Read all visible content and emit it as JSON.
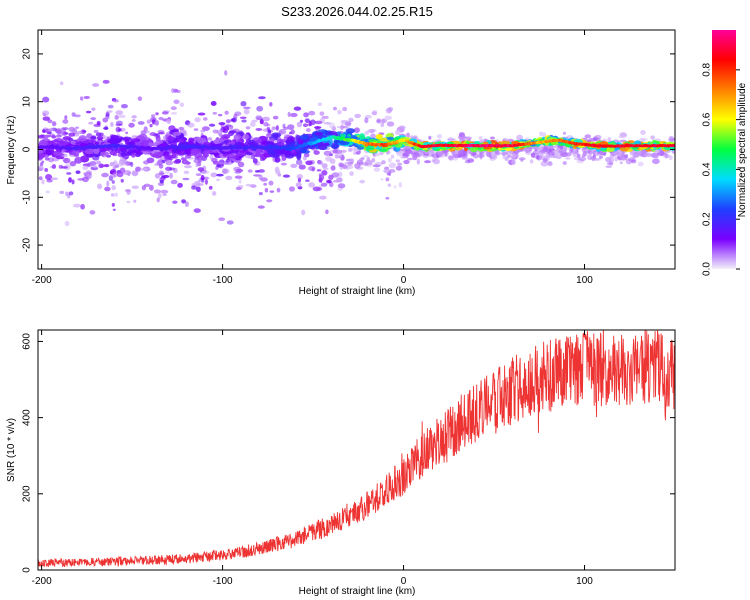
{
  "figure": {
    "title": "S233.2026.044.02.25.R15"
  },
  "chart_data": [
    {
      "type": "heatmap",
      "xlabel": "Height of straight line (km)",
      "ylabel": "Frequency (Hz)",
      "xlim": [
        -202,
        150
      ],
      "ylim": [
        -25,
        25
      ],
      "xticks": [
        -200,
        -100,
        0,
        100
      ],
      "yticks": [
        -20,
        -10,
        0,
        10,
        20
      ],
      "grid": false,
      "colorbar": {
        "label": "Normalized spectral amplitude",
        "range": [
          0,
          0.96
        ],
        "ticks": [
          0.0,
          0.2,
          0.4,
          0.6,
          0.8
        ],
        "colormap": [
          "#f2f0fa",
          "#7a00ff",
          "#1f3fff",
          "#00dcff",
          "#00ff40",
          "#ffff00",
          "#ff8000",
          "#ff0000",
          "#ff0099"
        ]
      },
      "ridge": {
        "x": [
          -200,
          -180,
          -160,
          -140,
          -120,
          -100,
          -80,
          -60,
          -40,
          -30,
          -20,
          -10,
          0,
          10,
          20,
          40,
          60,
          75,
          85,
          95,
          110,
          130,
          150
        ],
        "y": [
          0.5,
          0.3,
          0.8,
          0.2,
          0.6,
          0.4,
          0.5,
          0.3,
          2.5,
          2.0,
          1.2,
          0.9,
          2.0,
          0.6,
          0.9,
          0.8,
          0.8,
          1.5,
          2.0,
          1.2,
          0.7,
          0.8,
          0.8
        ],
        "amplitude": [
          0.15,
          0.18,
          0.2,
          0.15,
          0.2,
          0.18,
          0.2,
          0.25,
          0.4,
          0.55,
          0.75,
          0.8,
          0.65,
          0.9,
          0.9,
          0.95,
          0.95,
          0.7,
          0.75,
          0.85,
          0.9,
          0.9,
          0.9
        ]
      }
    },
    {
      "type": "line",
      "xlabel": "Height of straight line (km)",
      "ylabel": "SNR (10 * v/v)",
      "xlim": [
        -202,
        150
      ],
      "ylim": [
        0,
        630
      ],
      "xticks": [
        -200,
        -100,
        0,
        100
      ],
      "yticks": [
        0,
        200,
        400,
        600
      ],
      "grid": false,
      "series": [
        {
          "color": "#ee3333",
          "trend": {
            "x": [
              -202,
              -180,
              -160,
              -140,
              -120,
              -100,
              -80,
              -60,
              -50,
              -40,
              -30,
              -20,
              -10,
              0,
              10,
              20,
              30,
              40,
              50,
              60,
              70,
              80,
              90,
              100,
              110,
              120,
              130,
              140,
              150
            ],
            "y": [
              18,
              20,
              22,
              25,
              30,
              40,
              55,
              80,
              100,
              120,
              145,
              170,
              210,
              245,
              300,
              340,
              380,
              410,
              440,
              470,
              490,
              510,
              520,
              525,
              530,
              530,
              532,
              530,
              525
            ]
          }
        }
      ]
    }
  ]
}
